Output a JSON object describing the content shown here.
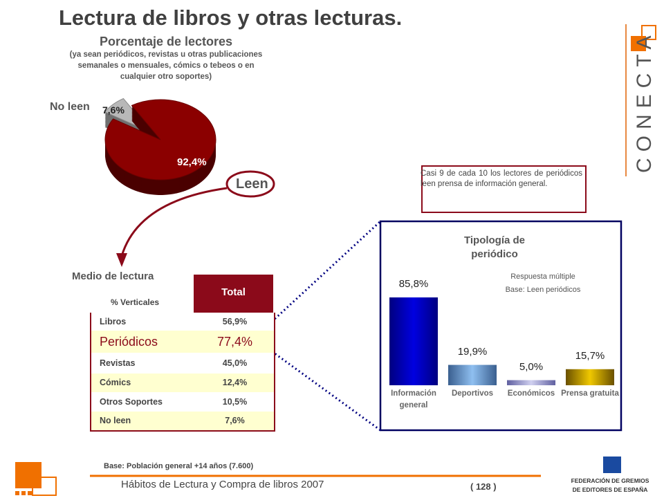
{
  "title": "Lectura de libros y otras lecturas.",
  "logo": "CONECTA",
  "chart_data": [
    {
      "type": "pie",
      "title": "Porcentaje de lectores",
      "subtitle": "(ya sean periódicos, revistas u otras publicaciones semanales o mensuales, cómics o tebeos o en cualquier otro soportes)",
      "categories": [
        "No leen",
        "Leen"
      ],
      "values": [
        7.6,
        92.4
      ],
      "value_labels": [
        "7,6%",
        "92,4%"
      ],
      "colors": [
        "#b8b8b8",
        "#8b0000"
      ]
    },
    {
      "type": "bar",
      "title": "Tipología de periódico",
      "notes": [
        "Respuesta múltiple",
        "Base: Leen periódicos"
      ],
      "categories": [
        "Información general",
        "Deportivos",
        "Económicos",
        "Prensa gratuita"
      ],
      "values": [
        85.8,
        19.9,
        5.0,
        15.7
      ],
      "value_labels": [
        "85,8%",
        "19,9%",
        "5,0%",
        "15,7%"
      ],
      "colors": [
        "#0000c8",
        "#6fa3dc",
        "#a0a0d0",
        "#c9a200"
      ]
    }
  ],
  "table": {
    "title": "Medio de lectura",
    "subtitle": "% Verticales",
    "header": "Total",
    "rows": [
      [
        "Libros",
        "56,9%"
      ],
      [
        "Periódicos",
        "77,4%"
      ],
      [
        "Revistas",
        "45,0%"
      ],
      [
        "Cómics",
        "12,4%"
      ],
      [
        "Otros Soportes",
        "10,5%"
      ],
      [
        "No leen",
        "7,6%"
      ]
    ]
  },
  "callout": "Casi 9 de cada 10 los lectores de periódicos leen prensa de información general.",
  "footer": {
    "base": "Base: Población general +14 años (7.600)",
    "source": "Hábitos de Lectura y Compra de libros 2007",
    "page": "( 128 )",
    "org": [
      "FEDERACIÓN DE GREMIOS",
      "DE EDITORES DE ESPAÑA"
    ]
  }
}
